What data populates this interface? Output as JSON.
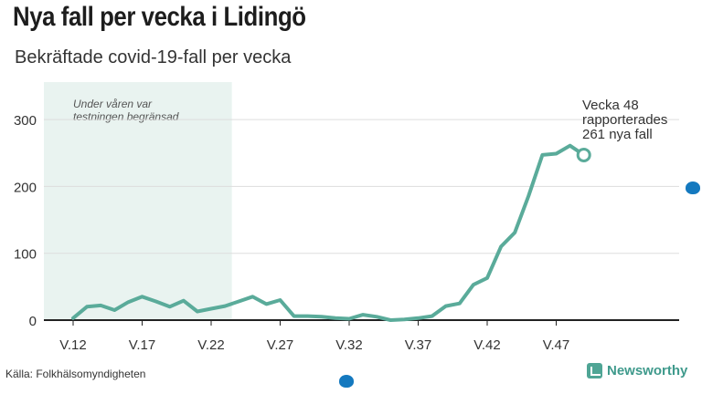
{
  "header": {
    "title": "Nya fall per vecka i Lidingö",
    "subtitle": "Bekräftade covid-19-fall per vecka"
  },
  "footer": {
    "source": "Källa: Folkhälsomyndigheten",
    "brand": "Newsworthy"
  },
  "colors": {
    "line": "#5aab9a",
    "shade": "#e9f3f0",
    "grid": "#dddddd",
    "axis": "#222222",
    "brand": "#3f9a8c",
    "handle": "#1479bf"
  },
  "chart_data": {
    "type": "line",
    "x": [
      12,
      13,
      14,
      15,
      16,
      17,
      18,
      19,
      20,
      21,
      22,
      23,
      24,
      25,
      26,
      27,
      28,
      29,
      30,
      31,
      32,
      33,
      34,
      35,
      36,
      37,
      38,
      39,
      40,
      41,
      42,
      43,
      44,
      45,
      46,
      47,
      48,
      49
    ],
    "y": [
      3,
      20,
      22,
      15,
      27,
      35,
      28,
      20,
      29,
      13,
      17,
      21,
      28,
      35,
      24,
      30,
      6,
      6,
      5,
      3,
      2,
      8,
      5,
      0,
      1,
      3,
      6,
      21,
      25,
      53,
      63,
      110,
      131,
      186,
      247,
      249,
      261,
      247
    ],
    "xlabel": "",
    "ylabel": "",
    "xticks": [
      12,
      17,
      22,
      27,
      32,
      37,
      42,
      47
    ],
    "xtick_labels": [
      "V.12",
      "V.17",
      "V.22",
      "V.27",
      "V.32",
      "V.37",
      "V.42",
      "V.47"
    ],
    "yticks": [
      0,
      100,
      200,
      300
    ],
    "ylim": [
      0,
      340
    ],
    "xlim": [
      11,
      54
    ],
    "grid": true,
    "shaded_region": {
      "from": 11,
      "to": 23.5,
      "label_line1": "Under våren var",
      "label_line2": "testningen begränsad"
    },
    "annotation": {
      "week": 49,
      "value": 247,
      "line1": "Vecka 48",
      "line2": "rapporterades",
      "line3": "261 nya fall"
    }
  }
}
